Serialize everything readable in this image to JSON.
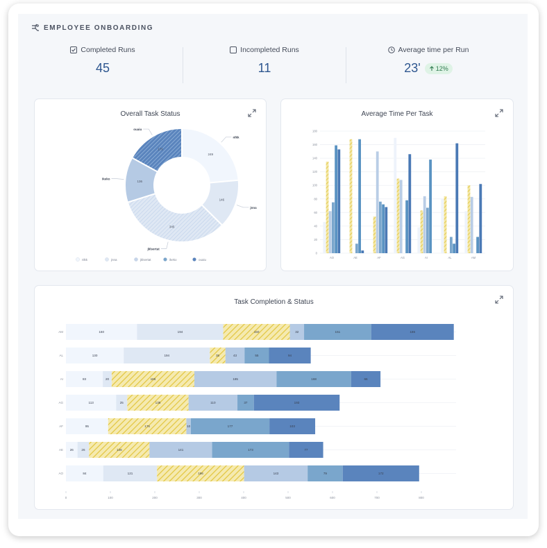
{
  "header": {
    "title": "EMPLOYEE ONBOARDING",
    "icon": "workflow-icon"
  },
  "stats": [
    {
      "label": "Completed Runs",
      "value": "45",
      "icon": "checkbox-checked-icon"
    },
    {
      "label": "Incompleted Runs",
      "value": "11",
      "icon": "checkbox-empty-icon"
    },
    {
      "label": "Average time per Run",
      "value": "23'",
      "icon": "clock-icon",
      "badge": "12%",
      "badge_icon": "arrow-up-icon"
    }
  ],
  "colors": {
    "c1": "#f1f6fd",
    "c2": "#dfe8f4",
    "c3": "#b5cae4",
    "c4": "#7aa6cc",
    "c5": "#5a84bd",
    "hatch": "#e7cf4e",
    "accent": "#2d568f"
  },
  "donut": {
    "title": "Overall Task Status",
    "slices": [
      {
        "name": "nlkk",
        "value": 249
      },
      {
        "name": "jnna",
        "value": 146
      },
      {
        "name": "jklsertat",
        "value": 345
      },
      {
        "name": "ikeko",
        "value": 136
      },
      {
        "name": "ouaiu",
        "value": 179
      }
    ]
  },
  "chart_data": [
    {
      "type": "bar",
      "title": "Average Time Per Task",
      "categories": [
        "AO",
        "AE",
        "AF",
        "AG",
        "AI",
        "AL",
        "AM"
      ],
      "ylim": [
        0,
        180
      ],
      "yticks": [
        "0",
        "20",
        "40",
        "60",
        "80",
        "100",
        "120",
        "140",
        "160",
        "180"
      ],
      "series": [
        {
          "values": [
            46,
            0,
            0,
            170,
            38,
            80,
            62
          ]
        },
        {
          "values": [
            135,
            168,
            54,
            110,
            63,
            84,
            100
          ]
        },
        {
          "values": [
            62,
            0,
            150,
            108,
            84,
            0,
            83
          ]
        },
        {
          "values": [
            75,
            14,
            76,
            0,
            67,
            24,
            0
          ]
        },
        {
          "values": [
            159,
            168,
            72,
            78,
            138,
            14,
            24
          ]
        },
        {
          "values": [
            153,
            4,
            68,
            146,
            0,
            162,
            102
          ]
        }
      ]
    },
    {
      "type": "bar",
      "title": "Task Completion & Status",
      "categories": [
        "AM",
        "AL",
        "AI",
        "AG",
        "AF",
        "AE",
        "AO"
      ],
      "xticks": [
        "0",
        "100",
        "200",
        "300",
        "400",
        "500",
        "600",
        "700",
        "800"
      ],
      "xlim": [
        0,
        800
      ],
      "series": [
        {
          "values": [
            160,
            130,
            83,
            113,
            95,
            26,
            84
          ]
        },
        {
          "values": [
            194,
            194,
            20,
            25,
            0,
            26,
            121
          ]
        },
        {
          "values": [
            150,
            35,
            186,
            138,
            176,
            136,
            196
          ]
        },
        {
          "values": [
            32,
            43,
            185,
            110,
            10,
            141,
            143
          ]
        },
        {
          "values": [
            151,
            55,
            168,
            37,
            177,
            173,
            79
          ]
        },
        {
          "values": [
            186,
            94,
            66,
            193,
            103,
            77,
            172
          ]
        }
      ]
    }
  ]
}
